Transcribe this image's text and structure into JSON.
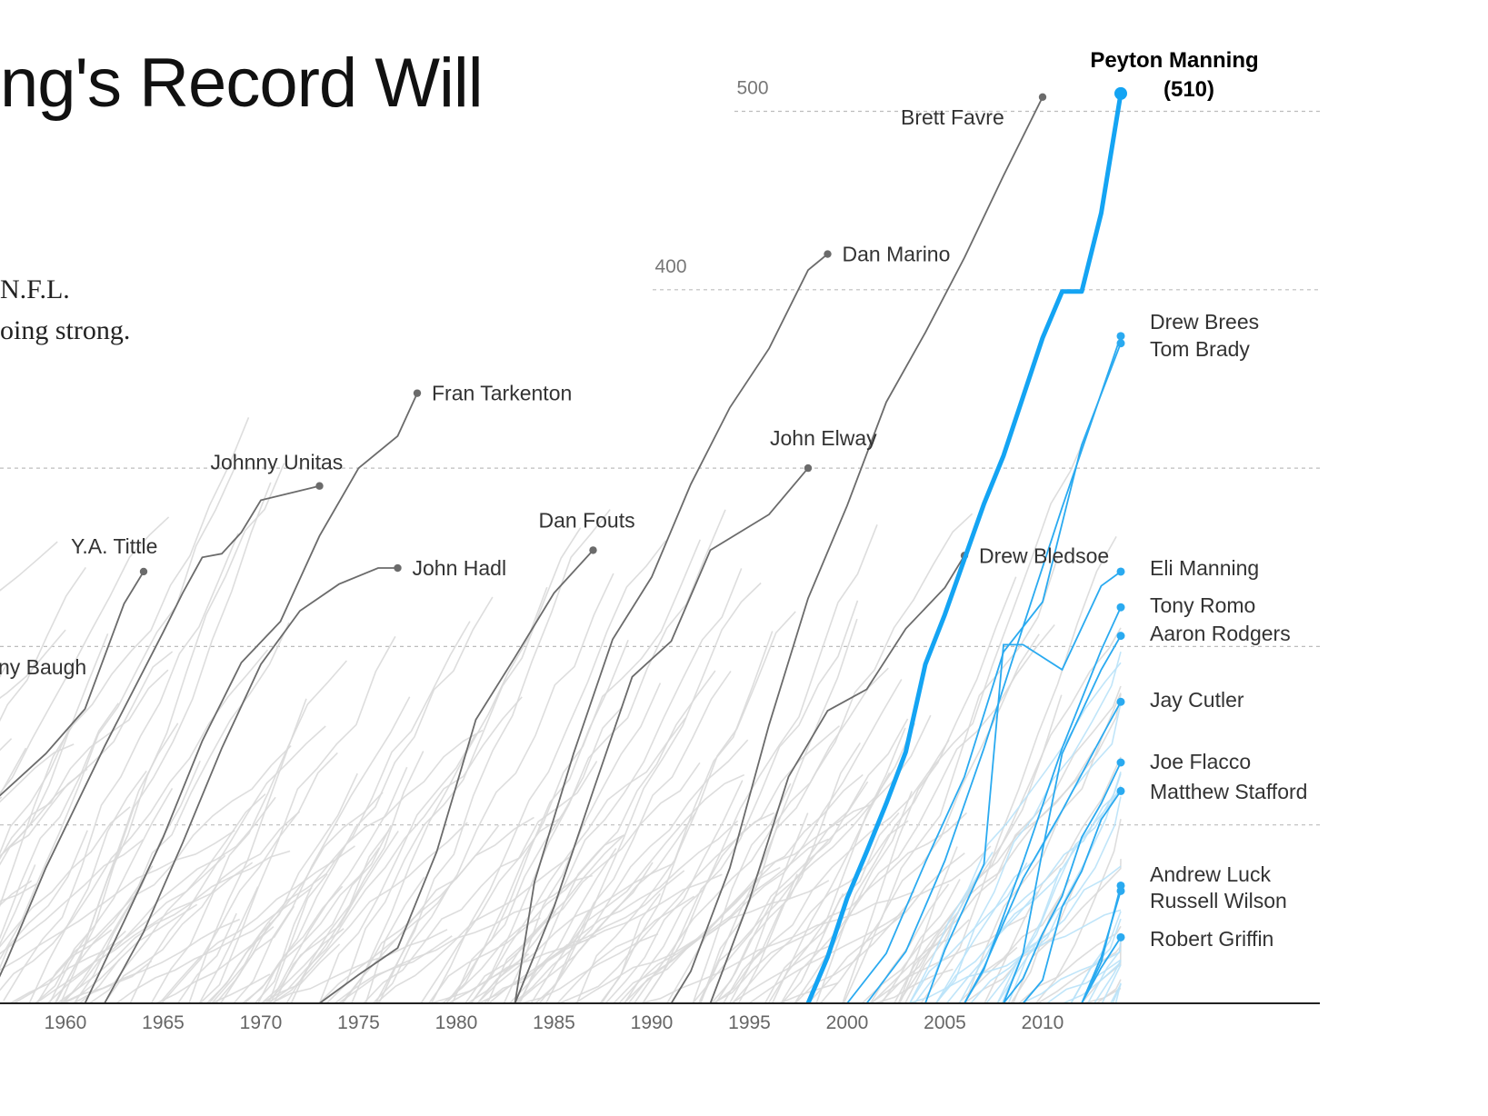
{
  "header": {
    "title_fragment": "ng's Record Will",
    "subtitle_line1": "N.F.L.",
    "subtitle_line2": "oing strong."
  },
  "colors": {
    "highlight": "#14a4f3",
    "active": "#2aaaf0",
    "active_light": "#b9e2f8",
    "retired": "#6b6b6b",
    "background_lines": "#d9d9d9",
    "grid": "#bdbdbd",
    "axis": "#222222"
  },
  "chart_data": {
    "type": "line",
    "title": "",
    "xlabel": "",
    "ylabel": "",
    "xlim": [
      1957,
      2020
    ],
    "ylim": [
      0,
      520
    ],
    "x_ticks": [
      1960,
      1965,
      1970,
      1975,
      1980,
      1985,
      1990,
      1995,
      2000,
      2005,
      2010
    ],
    "y_grid": [
      100,
      200,
      300,
      400,
      500
    ],
    "y_tick_labels": [
      {
        "value": 400,
        "label": "400"
      },
      {
        "value": 500,
        "label": "500"
      }
    ],
    "grid": true,
    "highlight": {
      "name": "Peyton Manning",
      "value_label": "(510)",
      "points": [
        [
          1998,
          0
        ],
        [
          1999,
          26
        ],
        [
          2000,
          59
        ],
        [
          2001,
          85
        ],
        [
          2002,
          112
        ],
        [
          2003,
          141
        ],
        [
          2004,
          190
        ],
        [
          2005,
          218
        ],
        [
          2006,
          249
        ],
        [
          2007,
          280
        ],
        [
          2008,
          307
        ],
        [
          2009,
          340
        ],
        [
          2010,
          373
        ],
        [
          2011,
          399
        ],
        [
          2012,
          399
        ],
        [
          2013,
          443
        ],
        [
          2014,
          510
        ]
      ]
    },
    "retired": [
      {
        "name": "Y.A. Tittle",
        "end": [
          1964,
          242
        ],
        "points": [
          [
            1950,
            80
          ],
          [
            1956,
            110
          ],
          [
            1959,
            140
          ],
          [
            1961,
            165
          ],
          [
            1963,
            224
          ],
          [
            1964,
            242
          ]
        ]
      },
      {
        "name": "Johnny Unitas",
        "end": [
          1973,
          290
        ],
        "points": [
          [
            1956,
            0
          ],
          [
            1957,
            24
          ],
          [
            1959,
            76
          ],
          [
            1962,
            144
          ],
          [
            1965,
            208
          ],
          [
            1966,
            230
          ],
          [
            1967,
            250
          ],
          [
            1968,
            252
          ],
          [
            1969,
            264
          ],
          [
            1970,
            282
          ],
          [
            1973,
            290
          ]
        ]
      },
      {
        "name": "John Hadl",
        "end": [
          1977,
          244
        ],
        "points": [
          [
            1962,
            0
          ],
          [
            1964,
            40
          ],
          [
            1966,
            90
          ],
          [
            1968,
            143
          ],
          [
            1970,
            190
          ],
          [
            1972,
            220
          ],
          [
            1974,
            235
          ],
          [
            1976,
            244
          ],
          [
            1977,
            244
          ]
        ]
      },
      {
        "name": "Fran Tarkenton",
        "end": [
          1978,
          342
        ],
        "points": [
          [
            1961,
            0
          ],
          [
            1963,
            46
          ],
          [
            1965,
            93
          ],
          [
            1967,
            147
          ],
          [
            1969,
            191
          ],
          [
            1971,
            214
          ],
          [
            1973,
            262
          ],
          [
            1975,
            300
          ],
          [
            1977,
            318
          ],
          [
            1978,
            342
          ]
        ]
      },
      {
        "name": "Dan Fouts",
        "end": [
          1987,
          254
        ],
        "points": [
          [
            1973,
            0
          ],
          [
            1975,
            16
          ],
          [
            1977,
            31
          ],
          [
            1979,
            85
          ],
          [
            1981,
            159
          ],
          [
            1983,
            194
          ],
          [
            1985,
            230
          ],
          [
            1987,
            254
          ]
        ]
      },
      {
        "name": "Dan Marino",
        "end": [
          1999,
          420
        ],
        "points": [
          [
            1983,
            0
          ],
          [
            1984,
            68
          ],
          [
            1986,
            140
          ],
          [
            1988,
            204
          ],
          [
            1990,
            239
          ],
          [
            1992,
            291
          ],
          [
            1994,
            334
          ],
          [
            1996,
            367
          ],
          [
            1998,
            411
          ],
          [
            1999,
            420
          ]
        ]
      },
      {
        "name": "John Elway",
        "end": [
          1998,
          300
        ],
        "points": [
          [
            1983,
            0
          ],
          [
            1985,
            54
          ],
          [
            1987,
            119
          ],
          [
            1989,
            183
          ],
          [
            1991,
            203
          ],
          [
            1993,
            254
          ],
          [
            1996,
            274
          ],
          [
            1998,
            300
          ]
        ]
      },
      {
        "name": "Brett Favre",
        "end": [
          2010,
          508
        ],
        "points": [
          [
            1991,
            0
          ],
          [
            1992,
            18
          ],
          [
            1994,
            76
          ],
          [
            1996,
            156
          ],
          [
            1998,
            227
          ],
          [
            2000,
            279
          ],
          [
            2002,
            337
          ],
          [
            2004,
            376
          ],
          [
            2006,
            418
          ],
          [
            2008,
            464
          ],
          [
            2010,
            508
          ]
        ]
      },
      {
        "name": "Drew Bledsoe",
        "end": [
          2006,
          251
        ],
        "points": [
          [
            1993,
            0
          ],
          [
            1995,
            58
          ],
          [
            1997,
            127
          ],
          [
            1999,
            164
          ],
          [
            2001,
            176
          ],
          [
            2003,
            210
          ],
          [
            2005,
            233
          ],
          [
            2006,
            251
          ]
        ]
      },
      {
        "name": "Sonny Baugh",
        "label_fragment": "ny Baugh",
        "end": [
          1952,
          187
        ],
        "points": [
          [
            1950,
            100
          ],
          [
            1952,
            187
          ]
        ]
      }
    ],
    "active": [
      {
        "name": "Drew Brees",
        "end": [
          2014,
          374
        ],
        "points": [
          [
            2001,
            0
          ],
          [
            2003,
            29
          ],
          [
            2005,
            80
          ],
          [
            2007,
            143
          ],
          [
            2009,
            211
          ],
          [
            2011,
            278
          ],
          [
            2013,
            342
          ],
          [
            2014,
            374
          ]
        ]
      },
      {
        "name": "Tom Brady",
        "end": [
          2014,
          370
        ],
        "points": [
          [
            2000,
            0
          ],
          [
            2002,
            28
          ],
          [
            2004,
            79
          ],
          [
            2006,
            127
          ],
          [
            2008,
            197
          ],
          [
            2010,
            225
          ],
          [
            2012,
            313
          ],
          [
            2014,
            370
          ]
        ]
      },
      {
        "name": "Eli Manning",
        "end": [
          2014,
          242
        ],
        "points": [
          [
            2004,
            0
          ],
          [
            2005,
            30
          ],
          [
            2007,
            78
          ],
          [
            2008,
            201
          ],
          [
            2009,
            201
          ],
          [
            2011,
            187
          ],
          [
            2013,
            234
          ],
          [
            2014,
            242
          ]
        ]
      },
      {
        "name": "Tony Romo",
        "end": [
          2014,
          222
        ],
        "points": [
          [
            2006,
            0
          ],
          [
            2007,
            19
          ],
          [
            2009,
            79
          ],
          [
            2011,
            143
          ],
          [
            2013,
            198
          ],
          [
            2014,
            222
          ]
        ]
      },
      {
        "name": "Aaron Rodgers",
        "end": [
          2014,
          206
        ],
        "points": [
          [
            2008,
            0
          ],
          [
            2009,
            28
          ],
          [
            2010,
            86
          ],
          [
            2011,
            140
          ],
          [
            2013,
            187
          ],
          [
            2014,
            206
          ]
        ]
      },
      {
        "name": "Jay Cutler",
        "end": [
          2014,
          169
        ],
        "points": [
          [
            2006,
            0
          ],
          [
            2007,
            20
          ],
          [
            2009,
            70
          ],
          [
            2011,
            108
          ],
          [
            2013,
            149
          ],
          [
            2014,
            169
          ]
        ]
      },
      {
        "name": "Joe Flacco",
        "end": [
          2014,
          135
        ],
        "points": [
          [
            2008,
            0
          ],
          [
            2009,
            14
          ],
          [
            2010,
            39
          ],
          [
            2011,
            60
          ],
          [
            2012,
            93
          ],
          [
            2013,
            112
          ],
          [
            2014,
            135
          ]
        ]
      },
      {
        "name": "Matthew Stafford",
        "end": [
          2014,
          119
        ],
        "points": [
          [
            2009,
            0
          ],
          [
            2010,
            13
          ],
          [
            2011,
            54
          ],
          [
            2012,
            74
          ],
          [
            2013,
            103
          ],
          [
            2014,
            119
          ]
        ]
      },
      {
        "name": "Andrew Luck",
        "end": [
          2014,
          66
        ],
        "points": [
          [
            2012,
            0
          ],
          [
            2013,
            23
          ],
          [
            2014,
            66
          ]
        ]
      },
      {
        "name": "Russell Wilson",
        "end": [
          2014,
          63
        ],
        "points": [
          [
            2012,
            0
          ],
          [
            2013,
            26
          ],
          [
            2014,
            63
          ]
        ]
      },
      {
        "name": "Robert Griffin",
        "end": [
          2014,
          37
        ],
        "points": [
          [
            2012,
            0
          ],
          [
            2013,
            20
          ],
          [
            2014,
            37
          ]
        ]
      }
    ]
  }
}
